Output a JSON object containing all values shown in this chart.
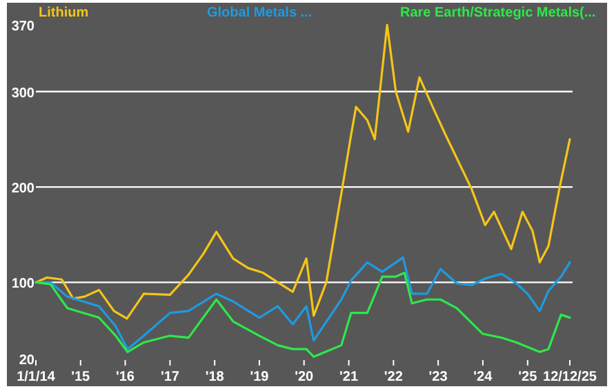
{
  "chart_data": {
    "type": "line",
    "legend": "top",
    "grid": "y",
    "xlim": [
      "2014-01-01",
      "2025-12-12"
    ],
    "ylim": [
      20,
      370
    ],
    "yticks": [
      20,
      100,
      200,
      300,
      370
    ],
    "xticks": [
      {
        "value": "2014-01-01",
        "label": "1/1/14"
      },
      {
        "value": "2015-01-01",
        "label": "'15"
      },
      {
        "value": "2016-01-01",
        "label": "'16"
      },
      {
        "value": "2017-01-01",
        "label": "'17"
      },
      {
        "value": "2018-01-01",
        "label": "'18"
      },
      {
        "value": "2019-01-01",
        "label": "'19"
      },
      {
        "value": "2020-01-01",
        "label": "'20"
      },
      {
        "value": "2021-01-01",
        "label": "'21"
      },
      {
        "value": "2022-01-01",
        "label": "'22"
      },
      {
        "value": "2023-01-01",
        "label": "'23"
      },
      {
        "value": "2024-01-01",
        "label": "'24"
      },
      {
        "value": "2025-01-01",
        "label": "'25"
      },
      {
        "value": "2025-12-12",
        "label": "12/12/25"
      }
    ],
    "series": [
      {
        "name": "Lithium",
        "color": "#f5c518",
        "x": [
          "2014-01-01",
          "2014-04-01",
          "2014-08-01",
          "2014-11-01",
          "2015-02-01",
          "2015-06-01",
          "2015-10-01",
          "2016-01-15",
          "2016-06-01",
          "2017-01-01",
          "2017-06-01",
          "2017-10-01",
          "2018-01-15",
          "2018-06-01",
          "2018-10-01",
          "2019-02-01",
          "2019-06-01",
          "2019-10-01",
          "2020-01-20",
          "2020-03-20",
          "2020-07-01",
          "2020-11-10",
          "2021-01-20",
          "2021-03-01",
          "2021-06-01",
          "2021-08-01",
          "2021-11-10",
          "2022-01-20",
          "2022-05-01",
          "2022-08-01",
          "2022-12-01",
          "2023-03-01",
          "2023-10-01",
          "2024-01-20",
          "2024-04-01",
          "2024-08-20",
          "2024-11-20",
          "2025-02-10",
          "2025-04-10",
          "2025-06-20",
          "2025-09-20",
          "2025-12-12"
        ],
        "values": [
          100,
          105,
          103,
          83,
          85,
          92,
          70,
          62,
          88,
          87,
          108,
          130,
          153,
          125,
          115,
          110,
          100,
          90,
          125,
          65,
          100,
          200,
          255,
          284,
          270,
          250,
          370,
          300,
          258,
          315,
          280,
          255,
          198,
          160,
          174,
          135,
          174,
          154,
          121,
          138,
          200,
          250
        ]
      },
      {
        "name": "Global Metals ...",
        "color": "#1e9be0",
        "x": [
          "2014-01-01",
          "2014-05-01",
          "2014-09-15",
          "2015-06-01",
          "2015-10-15",
          "2016-01-20",
          "2016-06-01",
          "2017-01-01",
          "2017-06-01",
          "2018-01-15",
          "2018-06-01",
          "2019-01-01",
          "2019-06-01",
          "2019-10-01",
          "2020-01-20",
          "2020-03-20",
          "2020-11-01",
          "2021-01-20",
          "2021-06-01",
          "2021-10-01",
          "2022-03-20",
          "2022-06-01",
          "2022-10-01",
          "2023-01-20",
          "2023-06-01",
          "2023-10-01",
          "2024-01-20",
          "2024-06-01",
          "2024-10-01",
          "2025-01-01",
          "2025-04-10",
          "2025-06-20",
          "2025-10-01",
          "2025-12-12"
        ],
        "values": [
          100,
          100,
          85,
          75,
          54,
          30,
          44,
          68,
          70,
          88,
          80,
          63,
          75,
          56,
          75,
          39,
          82,
          102,
          121,
          111,
          126,
          88,
          88,
          114,
          99,
          97,
          104,
          109,
          99,
          88,
          70,
          91,
          106,
          121
        ]
      },
      {
        "name": "Rare Earth/Strategic Metals(...",
        "color": "#2ee84a",
        "x": [
          "2014-01-01",
          "2014-05-01",
          "2014-09-15",
          "2015-06-01",
          "2015-10-15",
          "2016-01-20",
          "2016-06-01",
          "2017-01-01",
          "2017-06-01",
          "2018-01-15",
          "2018-06-01",
          "2019-01-01",
          "2019-06-01",
          "2019-10-01",
          "2020-01-20",
          "2020-03-20",
          "2020-11-01",
          "2021-01-20",
          "2021-06-01",
          "2021-10-01",
          "2022-01-20",
          "2022-04-01",
          "2022-06-01",
          "2022-10-01",
          "2023-01-20",
          "2023-06-01",
          "2024-01-01",
          "2024-06-01",
          "2024-10-01",
          "2025-04-10",
          "2025-06-20",
          "2025-10-01",
          "2025-12-12"
        ],
        "values": [
          100,
          98,
          73,
          63,
          44,
          27,
          37,
          44,
          42,
          82,
          59,
          44,
          34,
          30,
          30,
          22,
          34,
          68,
          68,
          106,
          106,
          110,
          78,
          82,
          82,
          73,
          46,
          42,
          37,
          27,
          30,
          66,
          63
        ]
      }
    ]
  }
}
